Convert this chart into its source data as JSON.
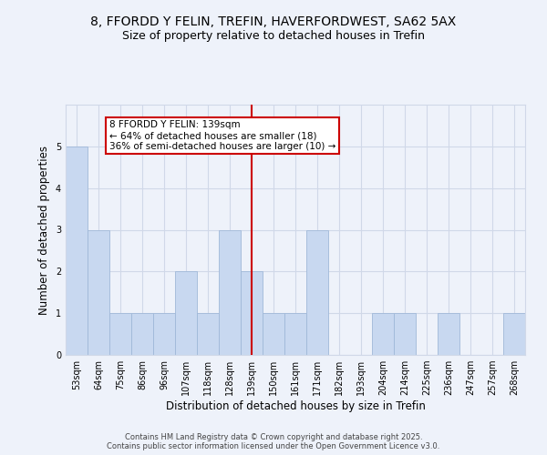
{
  "title": "8, FFORDD Y FELIN, TREFIN, HAVERFORDWEST, SA62 5AX",
  "subtitle": "Size of property relative to detached houses in Trefin",
  "xlabel": "Distribution of detached houses by size in Trefin",
  "ylabel": "Number of detached properties",
  "categories": [
    "53sqm",
    "64sqm",
    "75sqm",
    "86sqm",
    "96sqm",
    "107sqm",
    "118sqm",
    "128sqm",
    "139sqm",
    "150sqm",
    "161sqm",
    "171sqm",
    "182sqm",
    "193sqm",
    "204sqm",
    "214sqm",
    "225sqm",
    "236sqm",
    "247sqm",
    "257sqm",
    "268sqm"
  ],
  "values": [
    5,
    3,
    1,
    1,
    1,
    2,
    1,
    3,
    2,
    1,
    1,
    3,
    0,
    0,
    1,
    1,
    0,
    1,
    0,
    0,
    1
  ],
  "bar_color": "#c8d8f0",
  "bar_edge_color": "#a0b8d8",
  "marker_index": 8,
  "marker_line_color": "#cc0000",
  "annotation_line1": "8 FFORDD Y FELIN: 139sqm",
  "annotation_line2": "← 64% of detached houses are smaller (18)",
  "annotation_line3": "36% of semi-detached houses are larger (10) →",
  "annotation_box_color": "#ffffff",
  "annotation_box_edge_color": "#cc0000",
  "ylim": [
    0,
    6
  ],
  "yticks": [
    0,
    1,
    2,
    3,
    4,
    5,
    6
  ],
  "grid_color": "#d0d8e8",
  "background_color": "#eef2fa",
  "footer_line1": "Contains HM Land Registry data © Crown copyright and database right 2025.",
  "footer_line2": "Contains public sector information licensed under the Open Government Licence v3.0.",
  "title_fontsize": 10,
  "subtitle_fontsize": 9,
  "axis_label_fontsize": 8.5,
  "tick_fontsize": 7,
  "annotation_fontsize": 7.5,
  "footer_fontsize": 6
}
